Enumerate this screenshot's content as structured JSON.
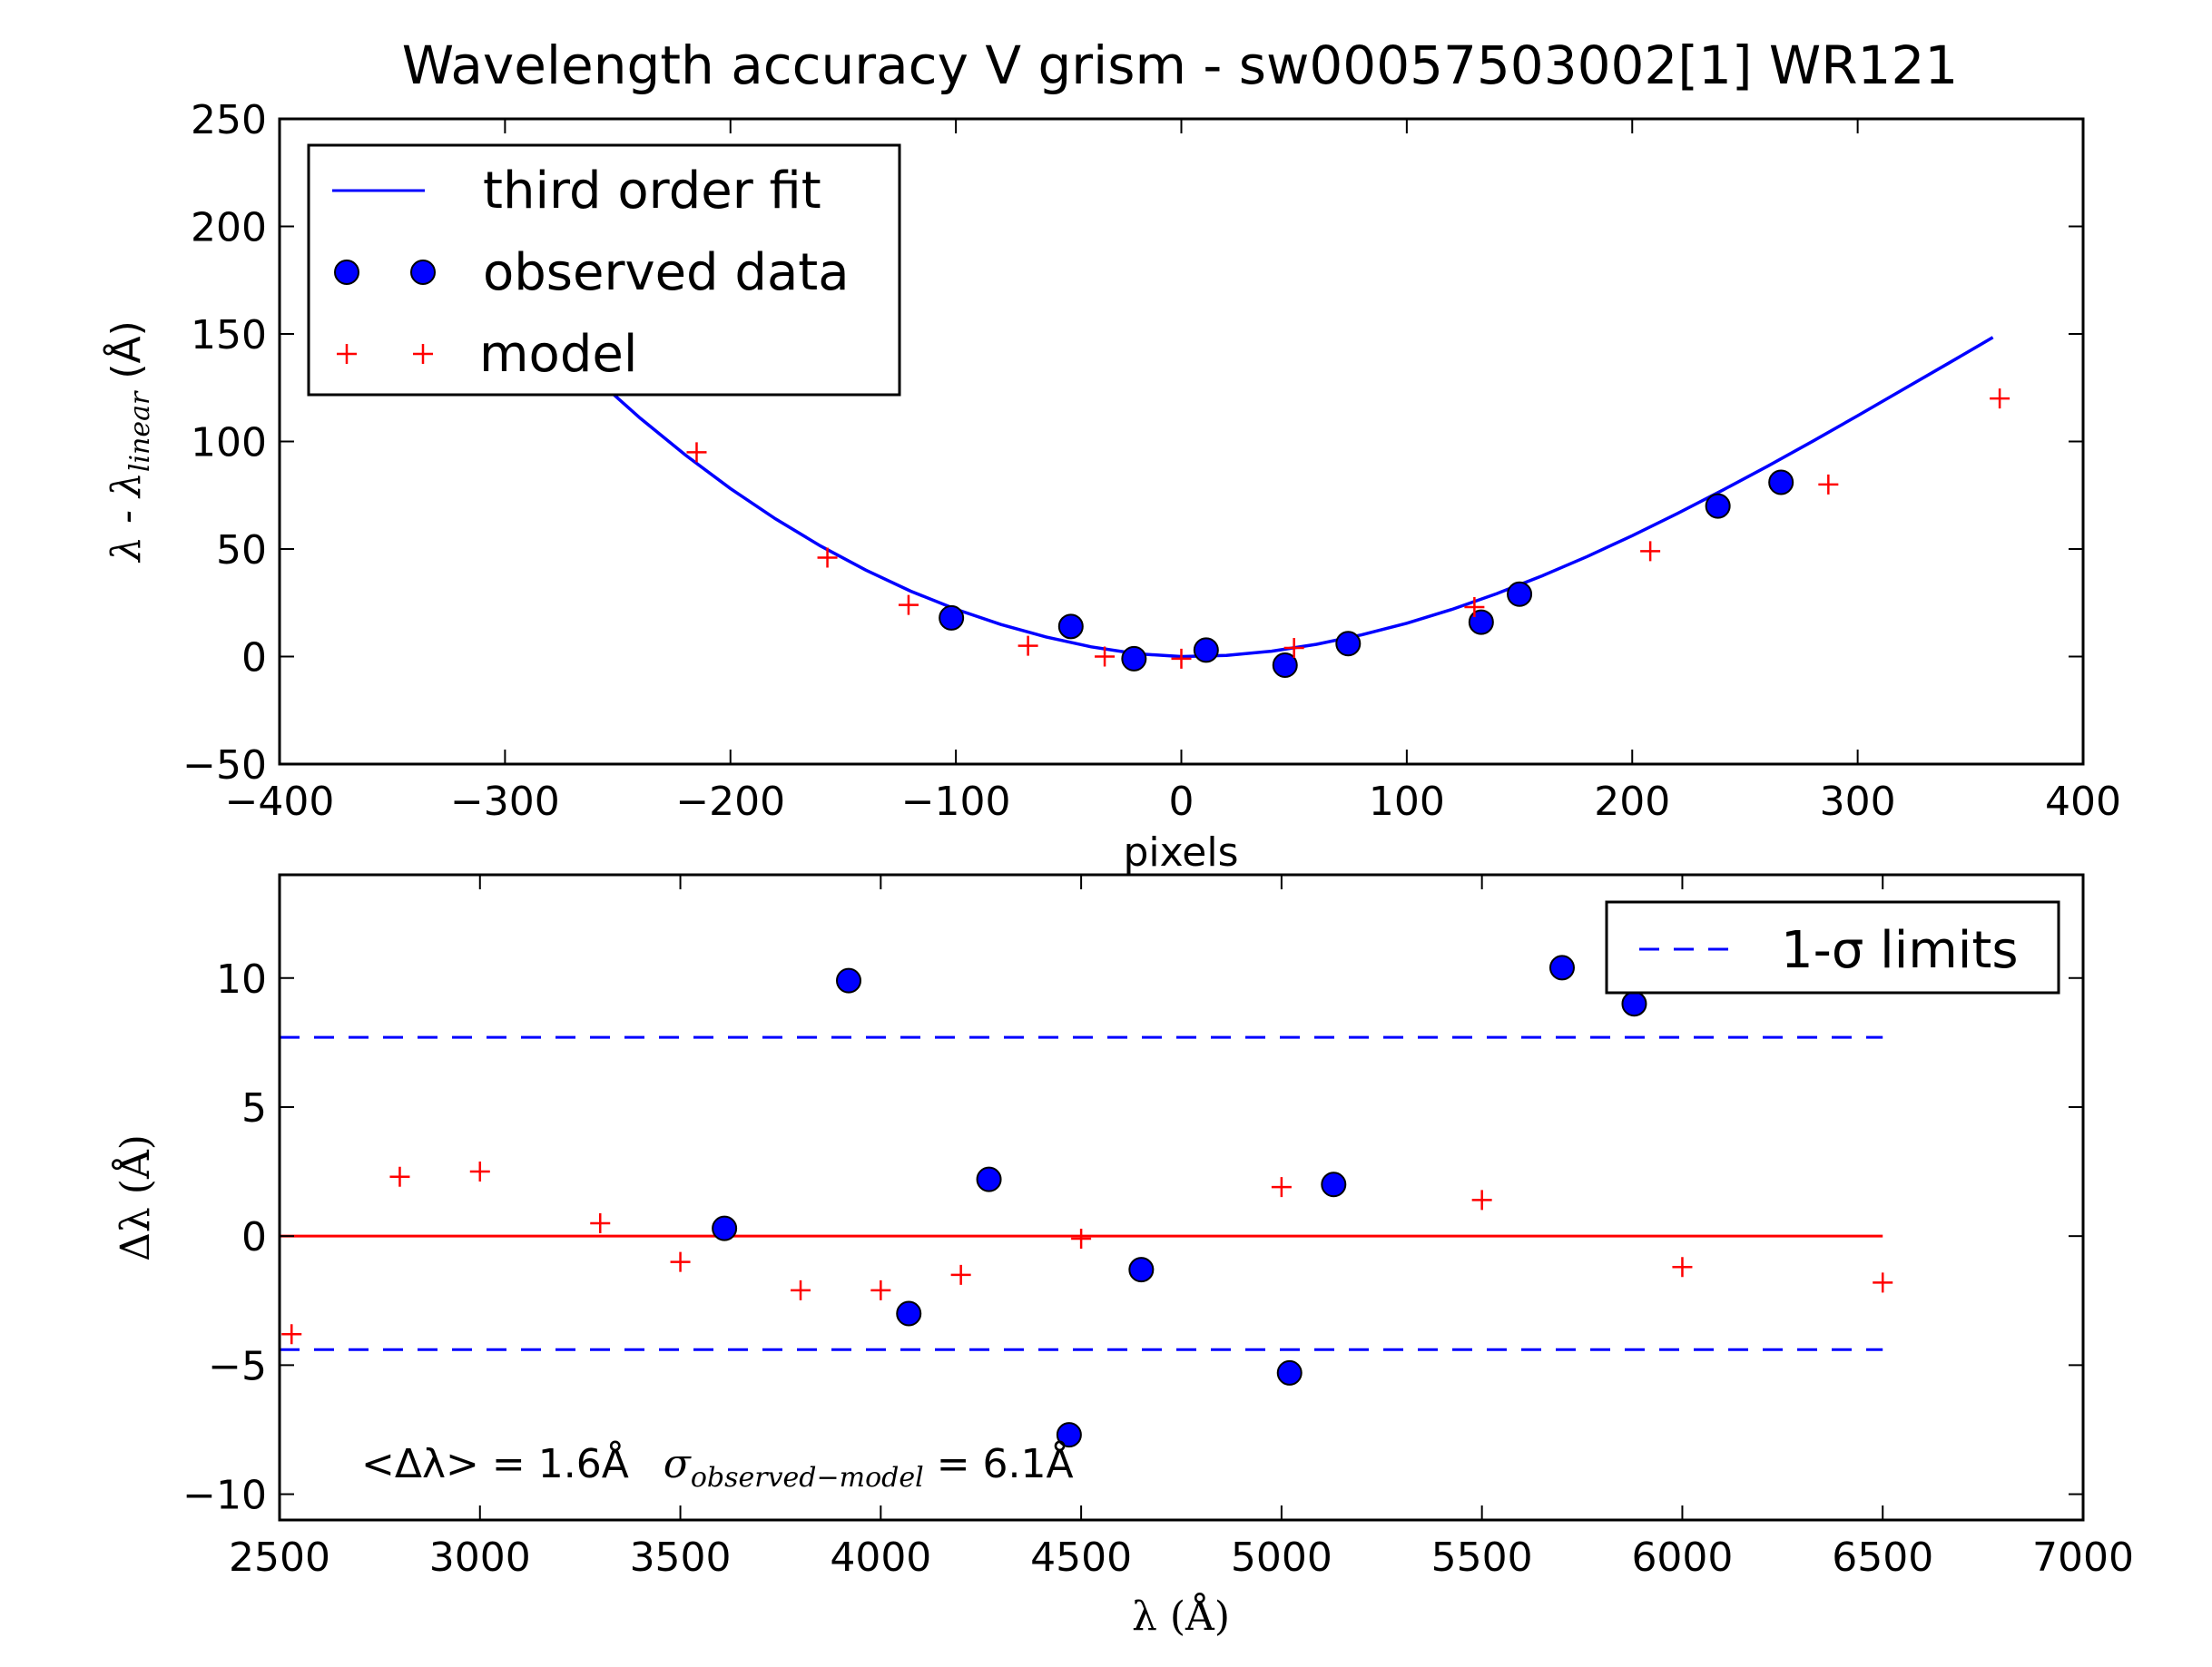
{
  "title": "Wavelength accuracy V grism - sw00057503002[1] WR121",
  "colors": {
    "fit": "#0000ff",
    "observed": "#0000ff",
    "model": "#ff0000",
    "zero_line": "#ff0000",
    "sigma": "#0000ff"
  },
  "chart_data": [
    {
      "type": "scatter",
      "title": "Wavelength accuracy V grism - sw00057503002[1] WR121",
      "xlabel": "pixels",
      "ylabel": "λ - λ",
      "ylabel_sub": "linear",
      "ylabel_unit": "(Å)",
      "xlim": [
        -400,
        400
      ],
      "ylim": [
        -50,
        250
      ],
      "xticks": [
        -400,
        -300,
        -200,
        -100,
        0,
        100,
        200,
        300,
        400
      ],
      "yticks": [
        -50,
        0,
        50,
        100,
        150,
        200,
        250
      ],
      "xtick_labels": [
        "−400",
        "−300",
        "−200",
        "−100",
        "0",
        "100",
        "200",
        "300",
        "400"
      ],
      "ytick_labels": [
        "−50",
        "0",
        "50",
        "100",
        "150",
        "200",
        "250"
      ],
      "grid": false,
      "legend_position": "top-left",
      "series": [
        {
          "name": "third order fit",
          "kind": "line",
          "x": [
            -260,
            -240,
            -220,
            -200,
            -180,
            -160,
            -140,
            -120,
            -100,
            -80,
            -60,
            -40,
            -20,
            0,
            20,
            40,
            60,
            80,
            100,
            120,
            140,
            160,
            180,
            200,
            220,
            240,
            260,
            280,
            300,
            320,
            340,
            360
          ],
          "y": [
            129.5,
            110.8,
            93.7,
            78.1,
            64.0,
            51.4,
            40.2,
            30.4,
            22.0,
            14.9,
            9.1,
            4.5,
            1.3,
            0.0,
            0.5,
            2.5,
            5.7,
            10.1,
            15.5,
            21.9,
            29.3,
            37.5,
            46.5,
            56.2,
            66.5,
            77.3,
            88.5,
            100.1,
            112.0,
            124.1,
            136.2,
            148.4
          ]
        },
        {
          "name": "observed data",
          "kind": "circle",
          "x": [
            -102,
            -49,
            -21,
            11,
            46,
            74,
            133,
            150,
            238,
            266
          ],
          "y": [
            18,
            14,
            -1,
            3,
            -4,
            6,
            16,
            29,
            70,
            81
          ]
        },
        {
          "name": "model",
          "kind": "plus",
          "x": [
            -215,
            -157,
            -121,
            -68,
            -34,
            0,
            50,
            130,
            208,
            287,
            363
          ],
          "y": [
            95,
            46,
            24,
            5,
            0,
            -1,
            4,
            23,
            49,
            80,
            120
          ]
        }
      ]
    },
    {
      "type": "scatter",
      "xlabel": "λ (Å)",
      "ylabel": "Δλ (Å)",
      "xlim": [
        2500,
        7000
      ],
      "ylim": [
        -11,
        14
      ],
      "xticks": [
        2500,
        3000,
        3500,
        4000,
        4500,
        5000,
        5500,
        6000,
        6500,
        7000
      ],
      "yticks": [
        -10,
        -5,
        0,
        5,
        10
      ],
      "xtick_labels": [
        "2500",
        "3000",
        "3500",
        "4000",
        "4500",
        "5000",
        "5500",
        "6000",
        "6500",
        "7000"
      ],
      "ytick_labels": [
        "−10",
        "−5",
        "0",
        "5",
        "10"
      ],
      "grid": false,
      "legend_position": "top-right",
      "annotation": {
        "mean_text": "<Δλ> = 1.6Å",
        "sigma_symbol": "σ",
        "sigma_sub": "observed−model",
        "sigma_text": " = 6.1Å"
      },
      "series": [
        {
          "name": "1-σ limits",
          "kind": "dashed",
          "x": [
            2500,
            6500
          ],
          "y_values": [
            7.7,
            -4.4
          ]
        },
        {
          "kind": "line",
          "x": [
            2500,
            6500
          ],
          "y": [
            0,
            0
          ]
        },
        {
          "kind": "circle",
          "x": [
            3610,
            3920,
            4070,
            4270,
            4470,
            4650,
            5020,
            5130,
            5700,
            5880
          ],
          "y": [
            0.3,
            9.9,
            -3.0,
            2.2,
            -7.7,
            -1.3,
            -5.3,
            2.0,
            10.4,
            9.0
          ]
        },
        {
          "kind": "plus",
          "x": [
            2530,
            2800,
            3000,
            3300,
            3500,
            3800,
            4000,
            4200,
            4500,
            5000,
            5500,
            6000,
            6500
          ],
          "y": [
            -3.8,
            2.3,
            2.5,
            0.5,
            -1.0,
            -2.1,
            -2.1,
            -1.5,
            -0.1,
            1.9,
            1.4,
            -1.2,
            -1.8
          ]
        }
      ]
    }
  ]
}
